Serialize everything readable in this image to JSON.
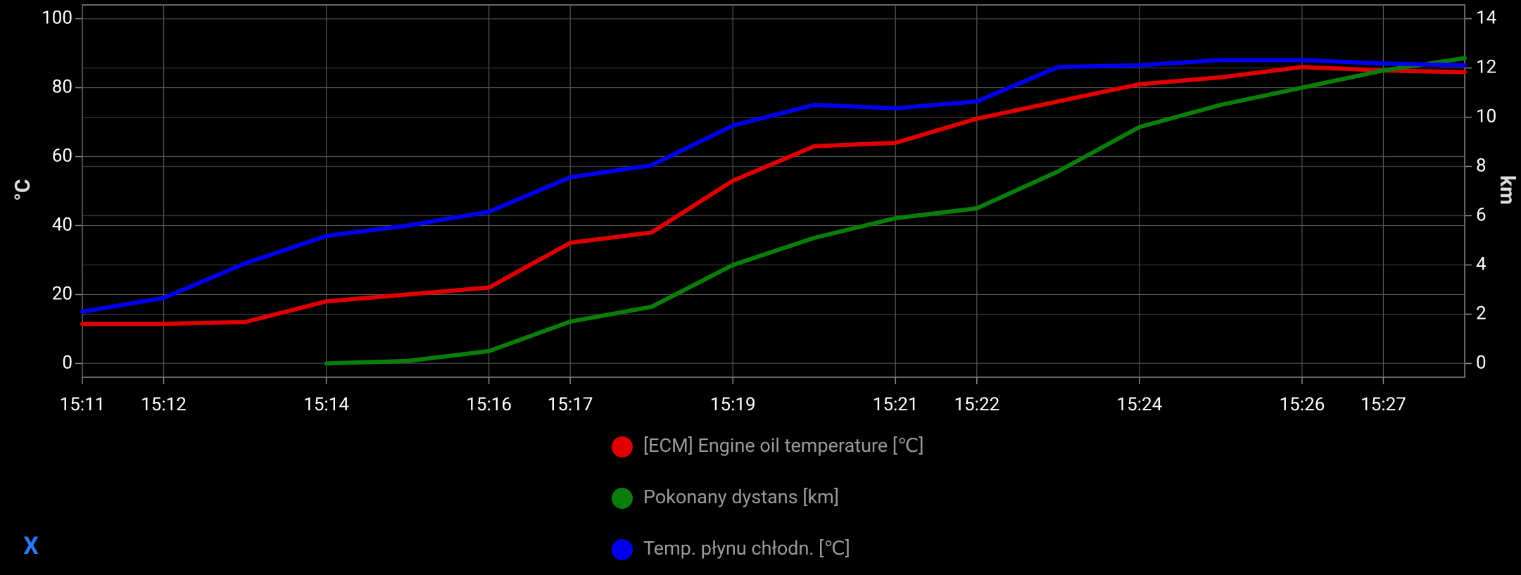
{
  "chart_data": {
    "type": "line",
    "x": [
      "15:11",
      "15:12",
      "15:13",
      "15:14",
      "15:15",
      "15:16",
      "15:17",
      "15:18",
      "15:19",
      "15:20",
      "15:21",
      "15:22",
      "15:23",
      "15:24",
      "15:25",
      "15:26",
      "15:27",
      "15:28"
    ],
    "xlim": [
      "15:11",
      "15:28"
    ],
    "xticks": [
      "15:11",
      "15:12",
      "15:14",
      "15:16",
      "15:17",
      "15:19",
      "15:21",
      "15:22",
      "15:24",
      "15:26",
      "15:27"
    ],
    "ylabel": "°C",
    "ylim": [
      -4,
      104
    ],
    "yticks": [
      0,
      20,
      40,
      60,
      80,
      100
    ],
    "y2label": "km",
    "y2lim": [
      -0.56,
      14.56
    ],
    "y2ticks": [
      0,
      2,
      4,
      6,
      8,
      10,
      12,
      14
    ],
    "grid": true,
    "legend": "bottom",
    "series": [
      {
        "name": "[ECM] Engine oil temperature [℃]",
        "color": "#e00000",
        "values": [
          11.5,
          11.5,
          12,
          18,
          20,
          22,
          35,
          38,
          53,
          63,
          64,
          71,
          76,
          81,
          83,
          86,
          85,
          84.5
        ]
      },
      {
        "name": "Pokonany dystans [km]",
        "color": "#0b7d0b",
        "axis": "y2",
        "values": [
          null,
          null,
          null,
          0,
          0.1,
          0.5,
          1.7,
          2.3,
          4.0,
          5.1,
          5.9,
          6.3,
          7.8,
          9.6,
          10.5,
          11.2,
          11.9,
          12.4
        ]
      },
      {
        "name": "Temp. płynu chłodn. [℃]",
        "color": "#0000ee",
        "values": [
          15,
          19,
          29,
          37,
          40,
          44,
          54,
          57.5,
          69,
          75,
          74,
          76,
          86,
          86.5,
          88,
          88,
          87,
          86.5
        ]
      }
    ]
  },
  "ui": {
    "close": "X"
  }
}
